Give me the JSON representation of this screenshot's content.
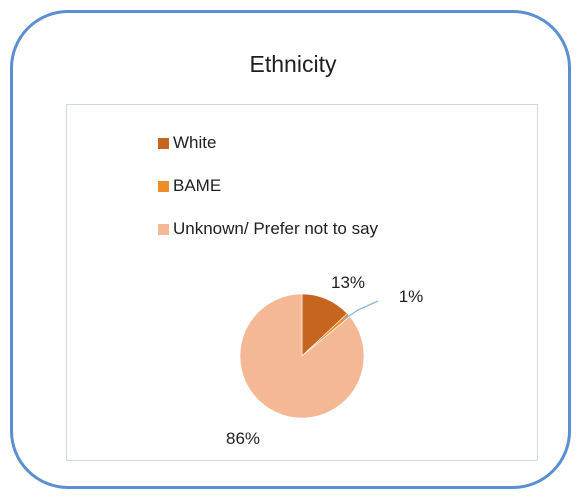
{
  "chart_data": {
    "type": "pie",
    "title": "Ethnicity",
    "categories": [
      "White",
      "BAME",
      "Unknown/ Prefer not to say"
    ],
    "values": [
      13,
      1,
      86
    ],
    "data_labels": [
      "13%",
      "1%",
      "86%"
    ],
    "colors": [
      "#c5651f",
      "#ef8c2a",
      "#f4b894"
    ],
    "legend_position": "top-left"
  }
}
